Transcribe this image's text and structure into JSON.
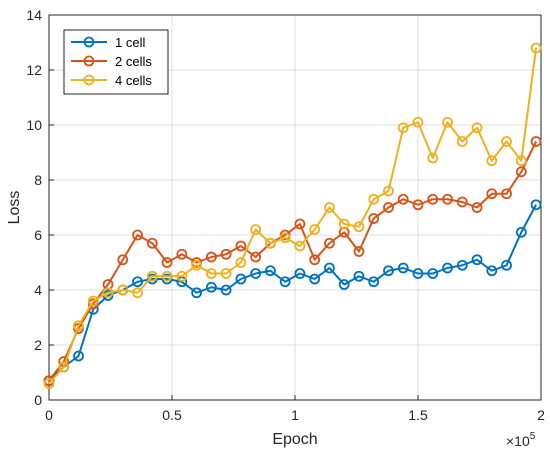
{
  "chart_data": {
    "type": "line",
    "xlabel": "Epoch",
    "ylabel": "Loss",
    "x_multiplier_label": "×10",
    "x_multiplier_exponent": "5",
    "xlim": [
      0,
      2
    ],
    "ylim": [
      0,
      14
    ],
    "x_ticks": [
      0,
      0.5,
      1,
      1.5,
      2
    ],
    "x_tick_labels": [
      "0",
      "0.5",
      "1",
      "1.5",
      "2"
    ],
    "y_ticks": [
      0,
      2,
      4,
      6,
      8,
      10,
      12,
      14
    ],
    "y_tick_labels": [
      "0",
      "2",
      "4",
      "6",
      "8",
      "10",
      "12",
      "14"
    ],
    "grid": true,
    "legend_position": "top-left",
    "marker": "circle",
    "x": [
      0,
      0.06,
      0.12,
      0.18,
      0.24,
      0.3,
      0.36,
      0.42,
      0.48,
      0.54,
      0.6,
      0.66,
      0.72,
      0.78,
      0.84,
      0.9,
      0.96,
      1.02,
      1.08,
      1.14,
      1.2,
      1.26,
      1.32,
      1.38,
      1.44,
      1.5,
      1.56,
      1.62,
      1.68,
      1.74,
      1.8,
      1.86,
      1.92,
      1.98
    ],
    "series": [
      {
        "name": "1 cell",
        "color": "#0072BD",
        "values": [
          0.7,
          1.2,
          1.6,
          3.3,
          3.8,
          4.0,
          4.3,
          4.4,
          4.4,
          4.3,
          3.9,
          4.1,
          4.0,
          4.4,
          4.6,
          4.7,
          4.3,
          4.6,
          4.4,
          4.8,
          4.2,
          4.5,
          4.3,
          4.7,
          4.8,
          4.6,
          4.6,
          4.8,
          4.9,
          5.1,
          4.7,
          4.9,
          6.1,
          7.1
        ]
      },
      {
        "name": "2 cells",
        "color": "#D95319",
        "values": [
          0.7,
          1.4,
          2.6,
          3.5,
          4.2,
          5.1,
          6.0,
          5.7,
          5.0,
          5.3,
          5.0,
          5.2,
          5.3,
          5.6,
          5.2,
          5.7,
          6.0,
          6.4,
          5.1,
          5.7,
          6.1,
          5.4,
          6.6,
          7.0,
          7.3,
          7.1,
          7.3,
          7.3,
          7.2,
          7.0,
          7.5,
          7.5,
          8.3,
          9.4
        ]
      },
      {
        "name": "4 cells",
        "color": "#EDB120",
        "values": [
          0.6,
          1.2,
          2.7,
          3.6,
          3.9,
          4.0,
          3.9,
          4.5,
          4.5,
          4.5,
          4.9,
          4.6,
          4.6,
          5.0,
          6.2,
          5.7,
          5.9,
          5.6,
          6.2,
          7.0,
          6.4,
          6.3,
          7.3,
          7.6,
          9.9,
          10.1,
          8.8,
          10.1,
          9.4,
          9.9,
          8.7,
          9.4,
          8.7,
          12.8
        ]
      }
    ]
  }
}
